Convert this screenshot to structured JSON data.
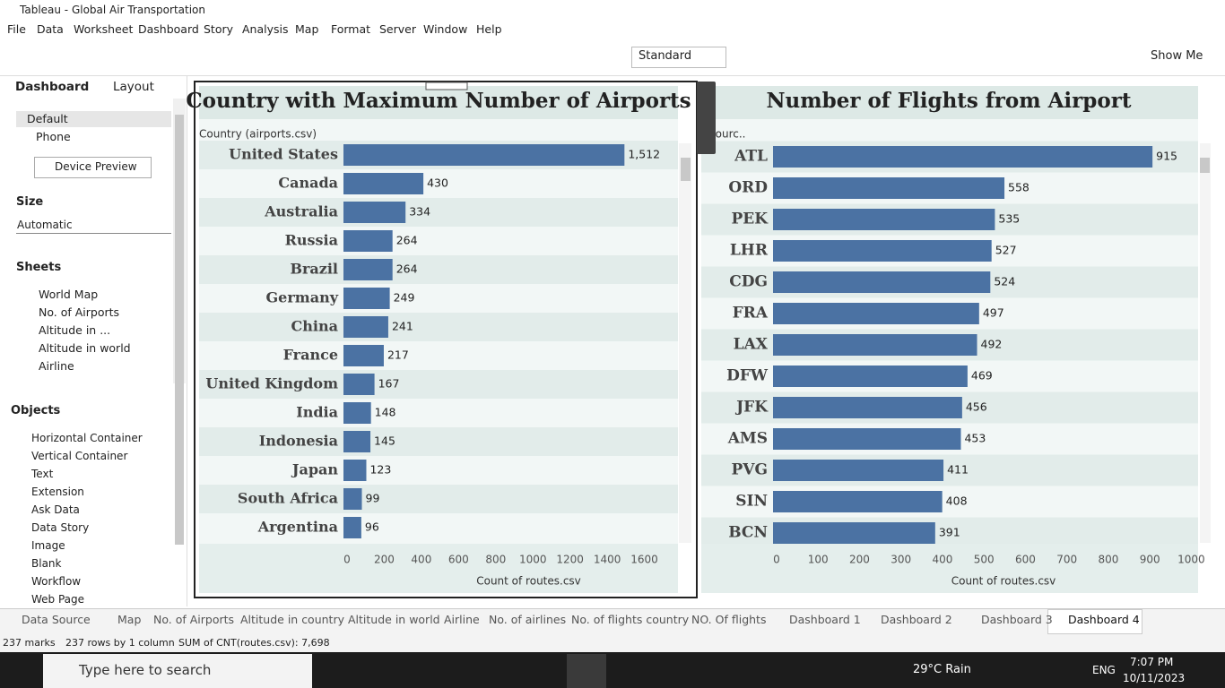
{
  "window": {
    "title": "Tableau - Global Air Transportation"
  },
  "menu": [
    "File",
    "Data",
    "Worksheet",
    "Dashboard",
    "Story",
    "Analysis",
    "Map",
    "Format",
    "Server",
    "Window",
    "Help"
  ],
  "toolbar": {
    "mode": "Standard",
    "show_me": "Show Me"
  },
  "sidebar": {
    "tabs": [
      "Dashboard",
      "Layout"
    ],
    "devices": [
      "Default",
      "Phone"
    ],
    "device_preview": "Device Preview",
    "size_heading": "Size",
    "size_value": "Automatic",
    "sheets_heading": "Sheets",
    "sheets": [
      "World Map",
      "No. of Airports",
      "Altitude in ...",
      "Altitude in world",
      "Airline"
    ],
    "objects_heading": "Objects",
    "objects": [
      "Horizontal Container",
      "Vertical Container",
      "Text",
      "Extension",
      "Ask Data",
      "Data Story",
      "Image",
      "Blank",
      "Workflow",
      "Web Page"
    ]
  },
  "tabs": [
    "Data Source",
    "Map",
    "No. of Airports",
    "Altitude in country",
    "Altitude in world",
    "Airline",
    "No. of airlines",
    "No. of flights country",
    "NO. Of flights",
    "Dashboard 1",
    "Dashboard 2",
    "Dashboard 3",
    "Dashboard 4"
  ],
  "status": [
    "237 marks",
    "237 rows by 1 column",
    "SUM of CNT(routes.csv): 7,698"
  ],
  "taskbar": {
    "search": "Type here to search",
    "weather": "29°C Rain",
    "language": "ENG",
    "time": "7:07 PM",
    "date": "10/11/2023"
  },
  "chart_data": [
    {
      "type": "bar",
      "orientation": "horizontal",
      "title": "Country with Maximum Number of Airports",
      "row_header": "Country (airports.csv)",
      "x_label": "Count of routes.csv",
      "color": "#4b72a3",
      "categories": [
        "United States",
        "Canada",
        "Australia",
        "Russia",
        "Brazil",
        "Germany",
        "China",
        "France",
        "United Kingdom",
        "India",
        "Indonesia",
        "Japan",
        "South Africa",
        "Argentina"
      ],
      "values": [
        1512,
        430,
        334,
        264,
        264,
        249,
        241,
        217,
        167,
        148,
        145,
        123,
        99,
        96
      ],
      "value_labels": [
        "1,512",
        "430",
        "334",
        "264",
        "264",
        "249",
        "241",
        "217",
        "167",
        "148",
        "145",
        "123",
        "99",
        "96"
      ],
      "xlim": [
        0,
        1800
      ],
      "xticks": [
        0,
        200,
        400,
        600,
        800,
        1000,
        1200,
        1400,
        1600
      ]
    },
    {
      "type": "bar",
      "orientation": "horizontal",
      "title": "Number of Flights from Airport",
      "row_header": "Sourc..",
      "x_label": "Count of routes.csv",
      "color": "#4b72a3",
      "categories": [
        "ATL",
        "ORD",
        "PEK",
        "LHR",
        "CDG",
        "FRA",
        "LAX",
        "DFW",
        "JFK",
        "AMS",
        "PVG",
        "SIN",
        "BCN"
      ],
      "values": [
        915,
        558,
        535,
        527,
        524,
        497,
        492,
        469,
        456,
        453,
        411,
        408,
        391
      ],
      "xlim": [
        0,
        1025
      ],
      "xticks": [
        0,
        100,
        200,
        300,
        400,
        500,
        600,
        700,
        800,
        900,
        1000
      ]
    }
  ]
}
